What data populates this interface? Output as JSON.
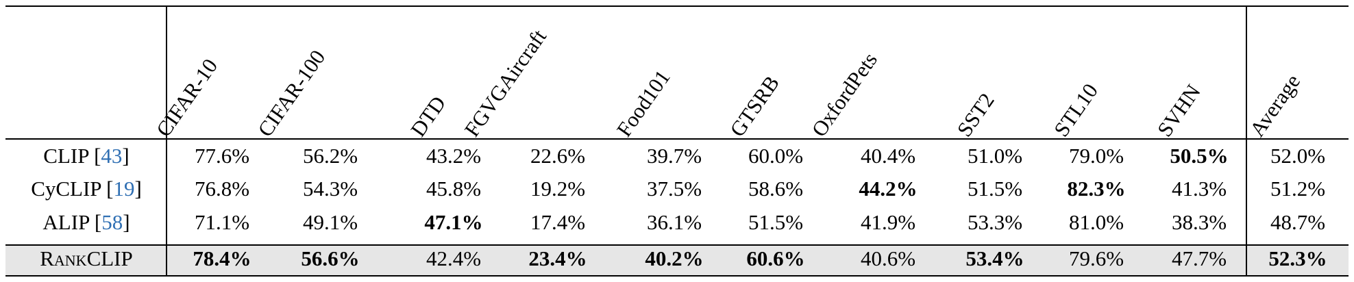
{
  "table": {
    "columns": [
      "CIFAR-10",
      "CIFAR-100",
      "DTD",
      "FGVGAircraft",
      "Food101",
      "GTSRB",
      "OxfordPets",
      "SST2",
      "STL10",
      "SVHN",
      "Average"
    ],
    "rows": [
      {
        "model": "CLIP",
        "cite": "43",
        "values": [
          "77.6%",
          "56.2%",
          "43.2%",
          "22.6%",
          "39.7%",
          "60.0%",
          "40.4%",
          "51.0%",
          "79.0%",
          "50.5%",
          "52.0%"
        ],
        "bold": [
          false,
          false,
          false,
          false,
          false,
          false,
          false,
          false,
          false,
          true,
          false
        ]
      },
      {
        "model": "CyCLIP",
        "cite": "19",
        "values": [
          "76.8%",
          "54.3%",
          "45.8%",
          "19.2%",
          "37.5%",
          "58.6%",
          "44.2%",
          "51.5%",
          "82.3%",
          "41.3%",
          "51.2%"
        ],
        "bold": [
          false,
          false,
          false,
          false,
          false,
          false,
          true,
          false,
          true,
          false,
          false
        ]
      },
      {
        "model": "ALIP",
        "cite": "58",
        "values": [
          "71.1%",
          "49.1%",
          "47.1%",
          "17.4%",
          "36.1%",
          "51.5%",
          "41.9%",
          "53.3%",
          "81.0%",
          "38.3%",
          "48.7%"
        ],
        "bold": [
          false,
          false,
          true,
          false,
          false,
          false,
          false,
          false,
          false,
          false,
          false
        ]
      },
      {
        "model": "RankCLIP",
        "cite": "",
        "highlight": true,
        "values": [
          "78.4%",
          "56.6%",
          "42.4%",
          "23.4%",
          "40.2%",
          "60.6%",
          "40.6%",
          "53.4%",
          "79.6%",
          "47.7%",
          "52.3%"
        ],
        "bold": [
          true,
          true,
          false,
          true,
          true,
          true,
          false,
          true,
          false,
          false,
          true
        ]
      }
    ]
  }
}
